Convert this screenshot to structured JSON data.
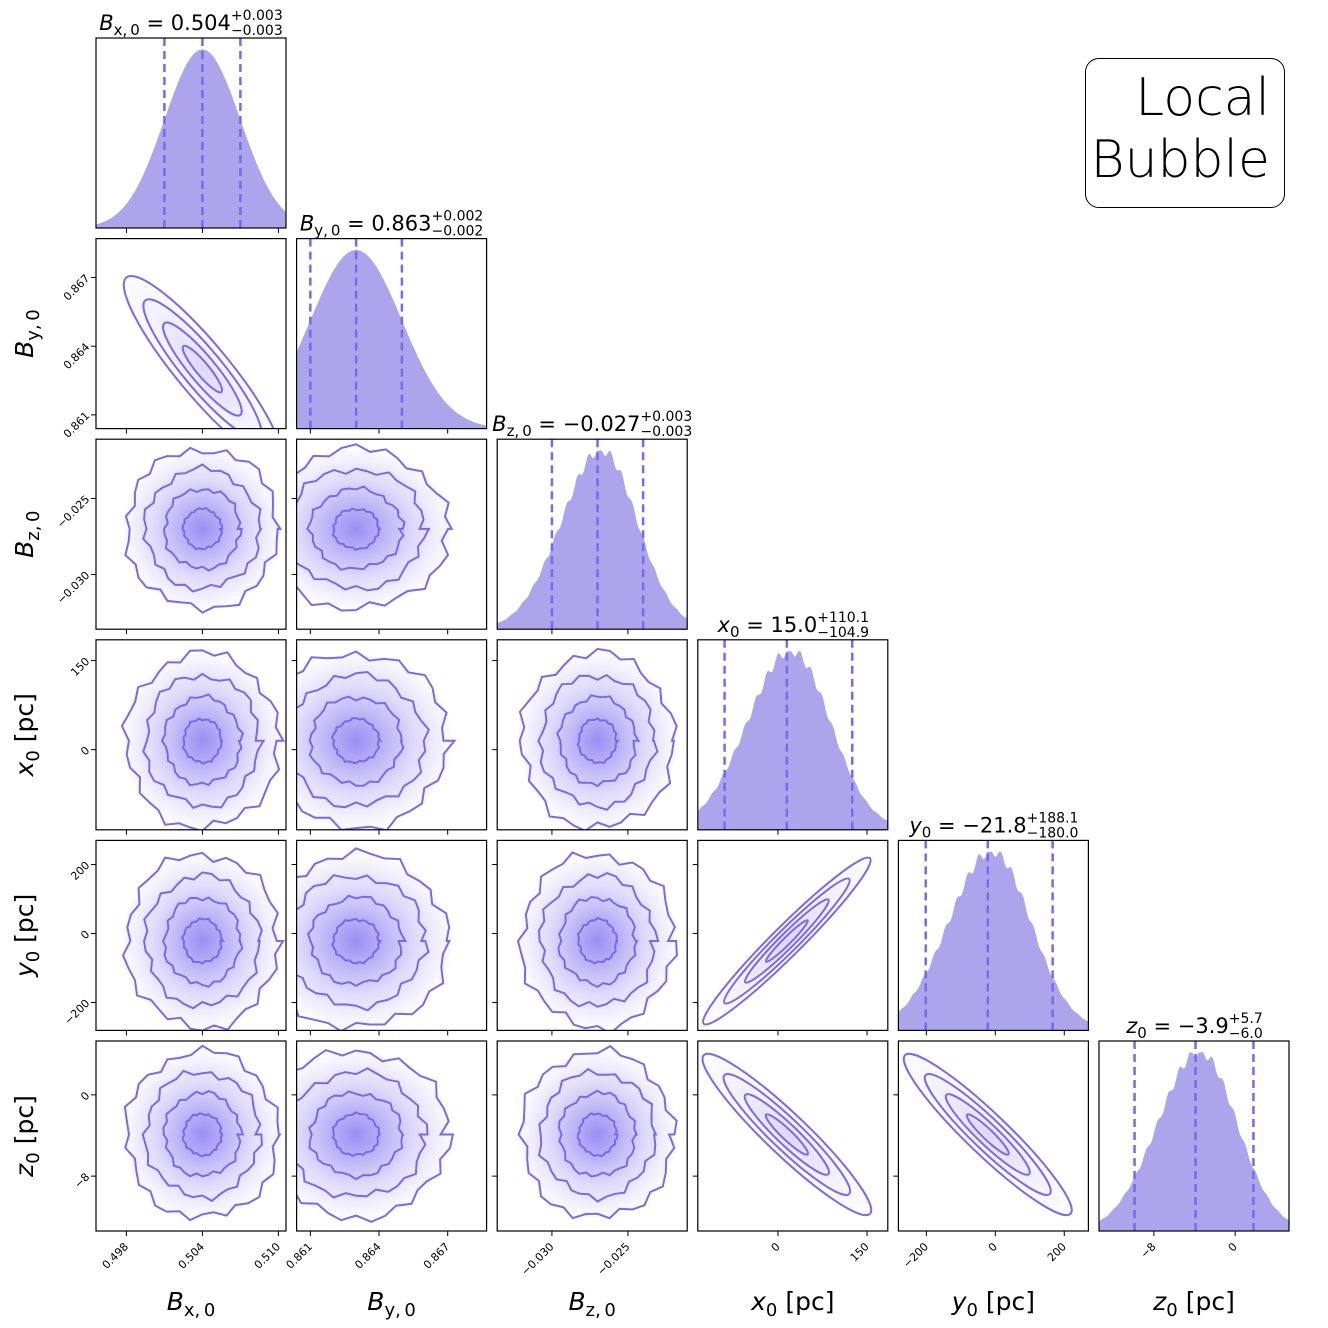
{
  "chart_data": {
    "type": "corner",
    "title": "Local Bubble",
    "title_lines": [
      "Local",
      "Bubble"
    ],
    "colors": {
      "accent": "#7b68ee",
      "fill": "#ada4eb",
      "axis": "#000000"
    },
    "parameters": [
      {
        "key": "bx",
        "label_main": "B",
        "label_sub": "x, 0",
        "unit": "",
        "median": 0.504,
        "plus": 0.003,
        "minus": 0.003,
        "title_value": "0.504",
        "title_plus": "+0.003",
        "title_minus": "−0.003",
        "range": [
          0.4956,
          0.5106
        ],
        "ticks": [
          0.498,
          0.504,
          0.51
        ],
        "tick_labels": [
          "0.498",
          "0.504",
          "0.510"
        ],
        "sigma": 0.003,
        "skew": 0
      },
      {
        "key": "by",
        "label_main": "B",
        "label_sub": "y, 0",
        "unit": "",
        "median": 0.863,
        "plus": 0.002,
        "minus": 0.002,
        "title_value": "0.863",
        "title_plus": "+0.002",
        "title_minus": "−0.002",
        "range": [
          0.8604,
          0.8687
        ],
        "ticks": [
          0.861,
          0.864,
          0.867
        ],
        "tick_labels": [
          "0.861",
          "0.864",
          "0.867"
        ],
        "sigma": 0.002,
        "skew": 0
      },
      {
        "key": "bz",
        "label_main": "B",
        "label_sub": "z, 0",
        "unit": "",
        "median": -0.027,
        "plus": 0.003,
        "minus": 0.003,
        "title_value": "−0.027",
        "title_plus": "+0.003",
        "title_minus": "−0.003",
        "range": [
          -0.0336,
          -0.0211
        ],
        "ticks": [
          -0.03,
          -0.025
        ],
        "tick_labels": [
          "−0.030",
          "−0.025"
        ],
        "sigma": 0.0025,
        "skew": 0.05
      },
      {
        "key": "x0",
        "label_main": "x",
        "label_sub": "0",
        "unit": " [pc]",
        "median": 15.0,
        "plus": 110.1,
        "minus": 104.9,
        "title_value": "15.0",
        "title_plus": "+110.1",
        "title_minus": "−104.9",
        "range": [
          -135,
          185
        ],
        "ticks": [
          0,
          150
        ],
        "tick_labels": [
          "0",
          "150"
        ],
        "sigma": 70,
        "skew": 0.05
      },
      {
        "key": "y0",
        "label_main": "y",
        "label_sub": "0",
        "unit": " [pc]",
        "median": -21.8,
        "plus": 188.1,
        "minus": 180.0,
        "title_value": "−21.8",
        "title_plus": "+188.1",
        "title_minus": "−180.0",
        "range": [
          -281,
          270
        ],
        "ticks": [
          -200,
          0,
          200
        ],
        "tick_labels": [
          "−200",
          "0",
          "200"
        ],
        "sigma": 120,
        "skew": 0.05
      },
      {
        "key": "z0",
        "label_main": "z",
        "label_sub": "0",
        "unit": " [pc]",
        "median": -3.9,
        "plus": 5.7,
        "minus": 6.0,
        "title_value": "−3.9",
        "title_plus": "+5.7",
        "title_minus": "−6.0",
        "range": [
          -13.4,
          5.3
        ],
        "ticks": [
          -8,
          0
        ],
        "tick_labels": [
          "−8",
          "0"
        ],
        "sigma": 3.9,
        "skew": 0.05
      }
    ],
    "correlations": [
      {
        "pair": [
          "bx",
          "by"
        ],
        "rho": -0.97
      },
      {
        "pair": [
          "x0",
          "y0"
        ],
        "rho": 0.99
      },
      {
        "pair": [
          "x0",
          "z0"
        ],
        "rho": -0.98
      },
      {
        "pair": [
          "y0",
          "z0"
        ],
        "rho": -0.98
      }
    ],
    "contour_levels": [
      0.5,
      1.0,
      1.5,
      2.0
    ],
    "quantile_lines": "dashed at median and ±1σ"
  }
}
